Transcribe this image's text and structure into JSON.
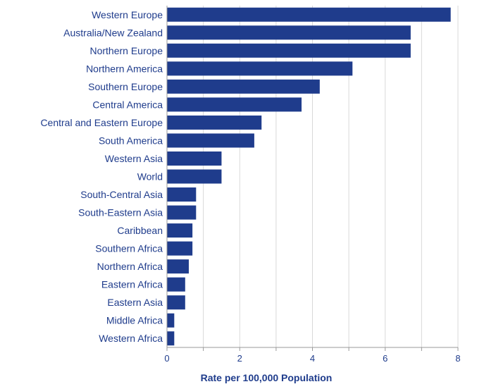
{
  "chart_data": {
    "type": "bar",
    "orientation": "horizontal",
    "categories": [
      "Western Europe",
      "Australia/New Zealand",
      "Northern Europe",
      "Northern America",
      "Southern Europe",
      "Central America",
      "Central and Eastern Europe",
      "South America",
      "Western Asia",
      "World",
      "South-Central Asia",
      "South-Eastern Asia",
      "Caribbean",
      "Southern Africa",
      "Northern Africa",
      "Eastern Africa",
      "Eastern Asia",
      "Middle Africa",
      "Western Africa"
    ],
    "values": [
      7.8,
      6.7,
      6.7,
      5.1,
      4.2,
      3.7,
      2.6,
      2.4,
      1.5,
      1.5,
      0.8,
      0.8,
      0.7,
      0.7,
      0.6,
      0.5,
      0.5,
      0.2,
      0.2
    ],
    "xlabel": "Rate per 100,000 Population",
    "ylabel": "",
    "xlim": [
      0,
      8
    ],
    "xticks": [
      0,
      2,
      4,
      6,
      8
    ],
    "grid": true,
    "colors": {
      "bar": "#1f3c8c",
      "text": "#1f3c8c",
      "grid": "#d9d9d9",
      "axis": "#999999"
    }
  }
}
